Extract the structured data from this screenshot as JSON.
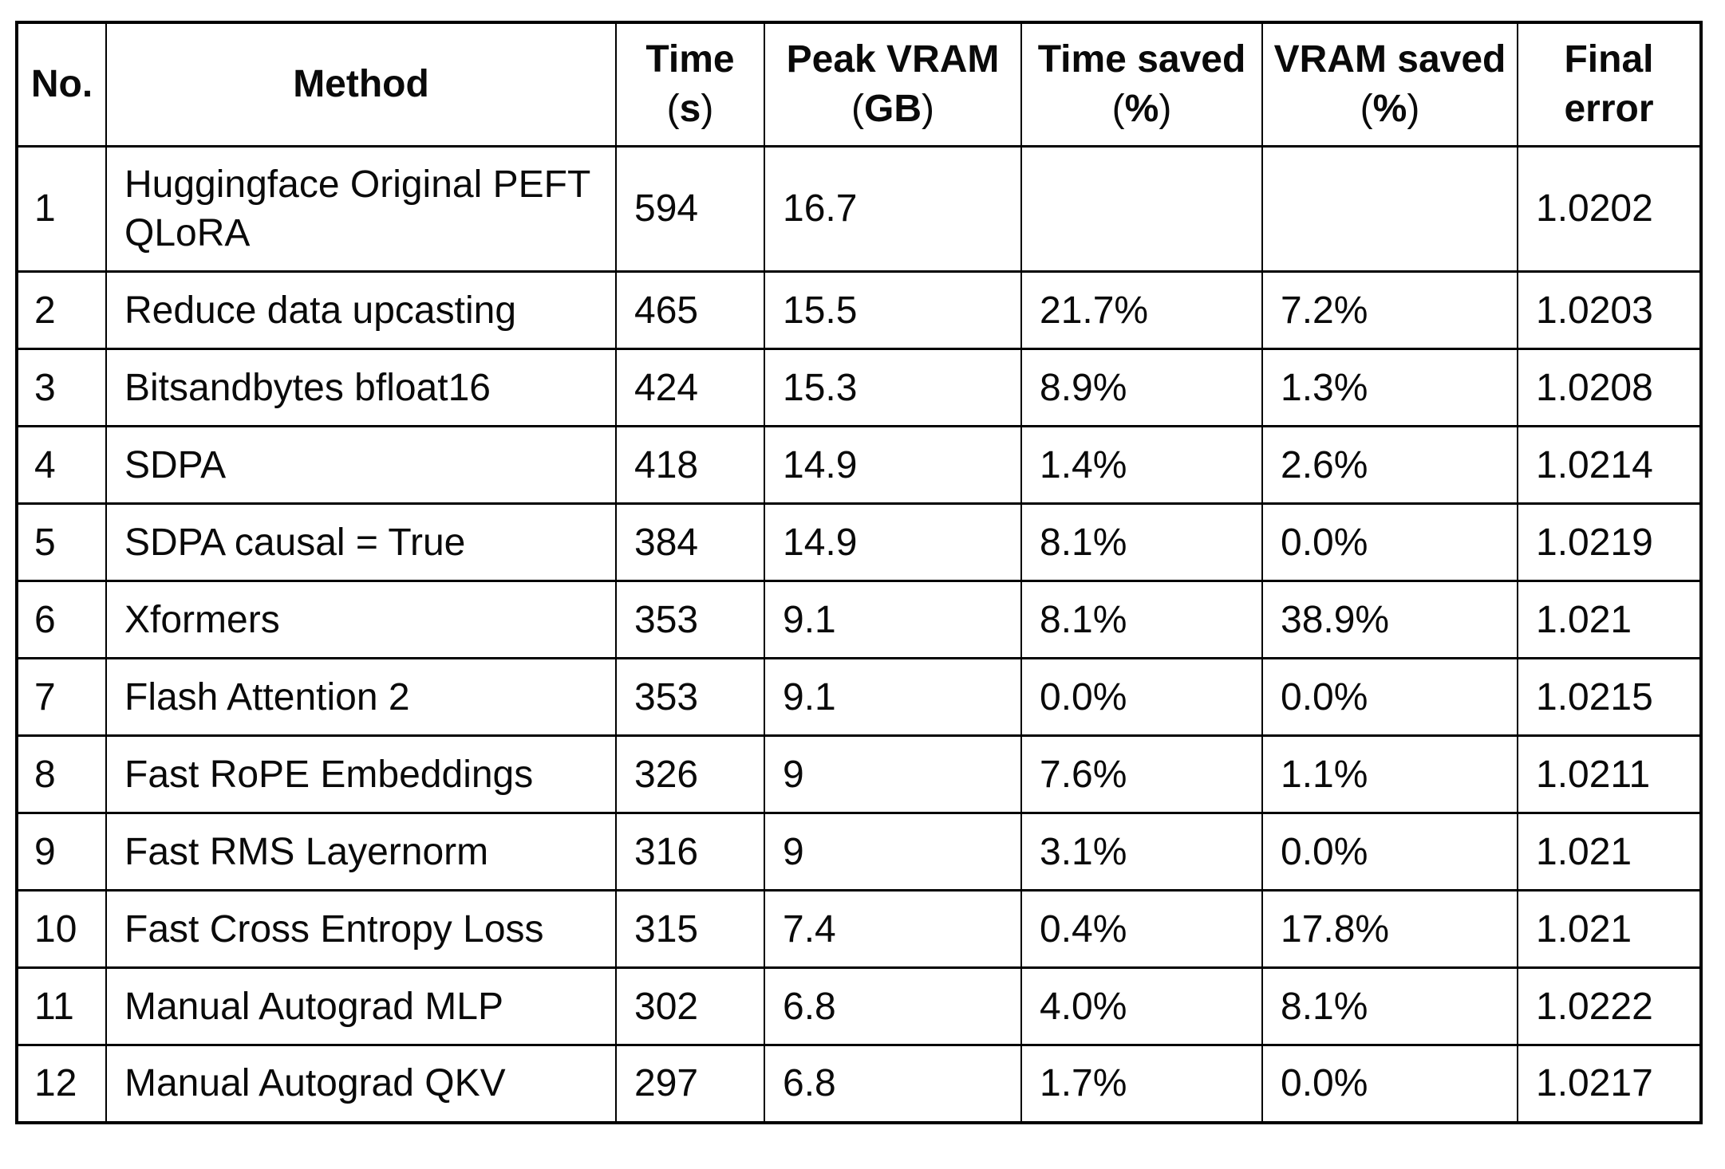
{
  "colors": {
    "background": "#ffffff",
    "border": "#000000",
    "text": "#0a0a0a"
  },
  "chart_data": {
    "type": "table",
    "columns": [
      {
        "key": "no",
        "label": "No.",
        "unit": null,
        "label2": null
      },
      {
        "key": "method",
        "label": "Method",
        "unit": null,
        "label2": null
      },
      {
        "key": "time",
        "label": "Time",
        "unit": "s",
        "label2": null
      },
      {
        "key": "peak_vram",
        "label": "Peak VRAM",
        "unit": "GB",
        "label2": null
      },
      {
        "key": "time_saved",
        "label": "Time saved",
        "unit": "%",
        "label2": null
      },
      {
        "key": "vram_saved",
        "label": "VRAM saved",
        "unit": "%",
        "label2": null
      },
      {
        "key": "final_error",
        "label": "Final",
        "unit": null,
        "label2": "error"
      }
    ],
    "rows": [
      {
        "no": "1",
        "method": "Huggingface Original PEFT QLoRA",
        "time": "594",
        "peak_vram": "16.7",
        "time_saved": "",
        "vram_saved": "",
        "final_error": "1.0202"
      },
      {
        "no": "2",
        "method": "Reduce data upcasting",
        "time": "465",
        "peak_vram": "15.5",
        "time_saved": "21.7%",
        "vram_saved": "7.2%",
        "final_error": "1.0203"
      },
      {
        "no": "3",
        "method": "Bitsandbytes bfloat16",
        "time": "424",
        "peak_vram": "15.3",
        "time_saved": "8.9%",
        "vram_saved": "1.3%",
        "final_error": "1.0208"
      },
      {
        "no": "4",
        "method": "SDPA",
        "time": "418",
        "peak_vram": "14.9",
        "time_saved": "1.4%",
        "vram_saved": "2.6%",
        "final_error": "1.0214"
      },
      {
        "no": "5",
        "method": "SDPA causal = True",
        "time": "384",
        "peak_vram": "14.9",
        "time_saved": "8.1%",
        "vram_saved": "0.0%",
        "final_error": "1.0219"
      },
      {
        "no": "6",
        "method": "Xformers",
        "time": "353",
        "peak_vram": "9.1",
        "time_saved": "8.1%",
        "vram_saved": "38.9%",
        "final_error": "1.021"
      },
      {
        "no": "7",
        "method": "Flash Attention 2",
        "time": "353",
        "peak_vram": "9.1",
        "time_saved": "0.0%",
        "vram_saved": "0.0%",
        "final_error": "1.0215"
      },
      {
        "no": "8",
        "method": "Fast RoPE Embeddings",
        "time": "326",
        "peak_vram": "9",
        "time_saved": "7.6%",
        "vram_saved": "1.1%",
        "final_error": "1.0211"
      },
      {
        "no": "9",
        "method": "Fast RMS Layernorm",
        "time": "316",
        "peak_vram": "9",
        "time_saved": "3.1%",
        "vram_saved": "0.0%",
        "final_error": "1.021"
      },
      {
        "no": "10",
        "method": "Fast Cross Entropy Loss",
        "time": "315",
        "peak_vram": "7.4",
        "time_saved": "0.4%",
        "vram_saved": "17.8%",
        "final_error": "1.021"
      },
      {
        "no": "11",
        "method": "Manual Autograd MLP",
        "time": "302",
        "peak_vram": "6.8",
        "time_saved": "4.0%",
        "vram_saved": "8.1%",
        "final_error": "1.0222"
      },
      {
        "no": "12",
        "method": "Manual Autograd QKV",
        "time": "297",
        "peak_vram": "6.8",
        "time_saved": "1.7%",
        "vram_saved": "0.0%",
        "final_error": "1.0217"
      }
    ]
  }
}
